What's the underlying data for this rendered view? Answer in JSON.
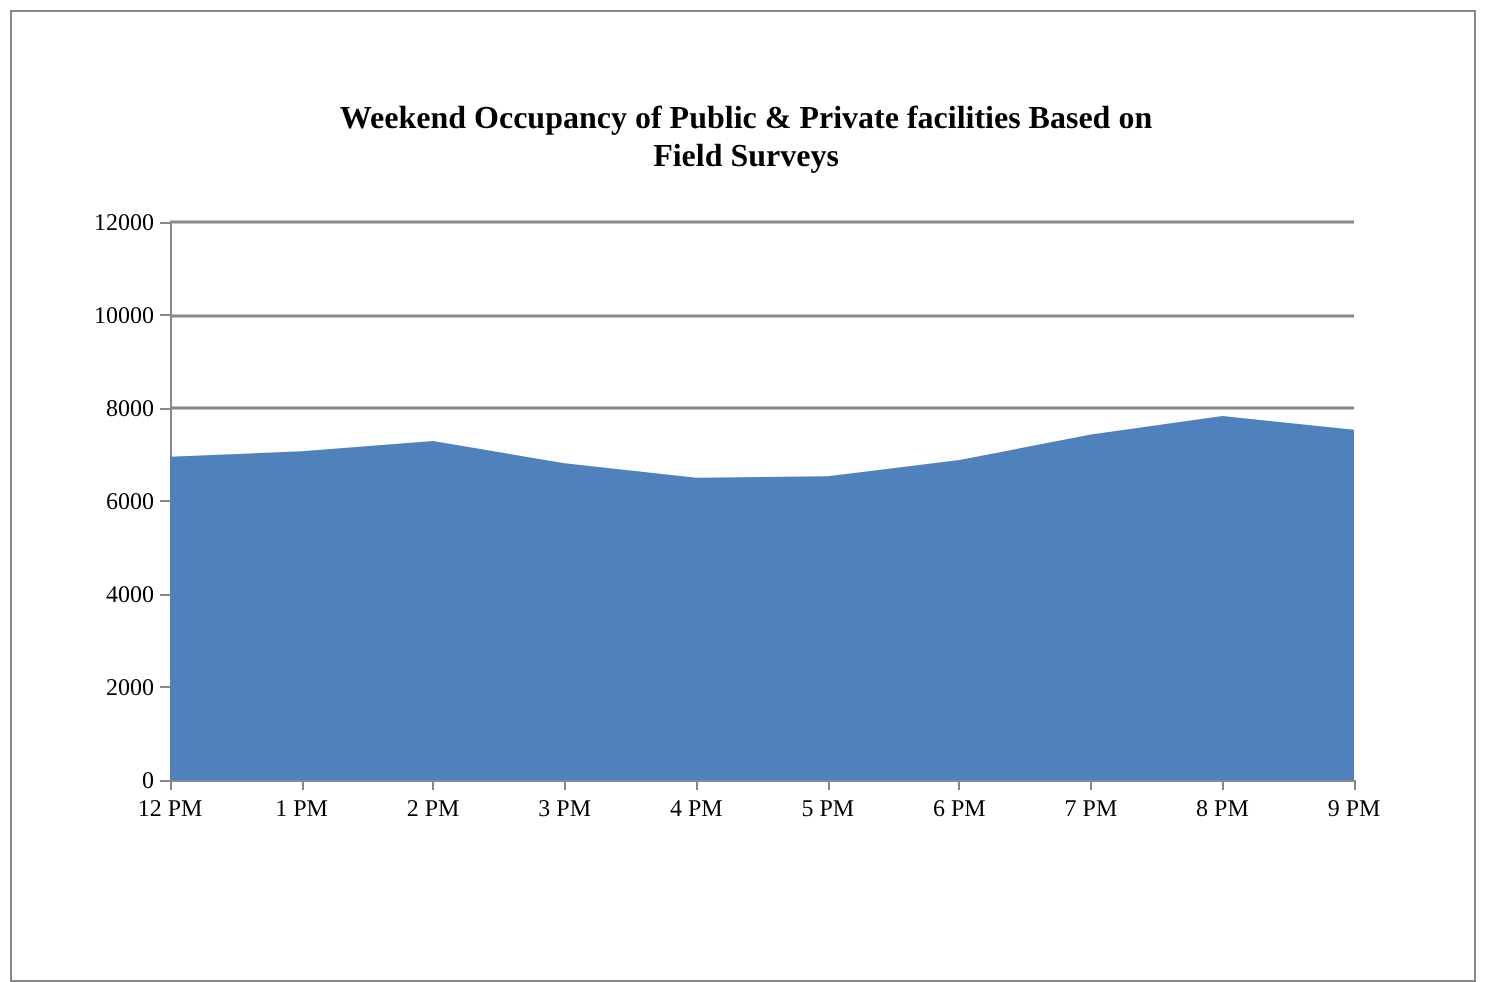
{
  "chart_data": {
    "type": "area",
    "title": "Weekend Occupancy of Public & Private facilities Based on\nField Surveys",
    "categories": [
      "12 PM",
      "1 PM",
      "2 PM",
      "3 PM",
      "4 PM",
      "5 PM",
      "6 PM",
      "7 PM",
      "8 PM",
      "9 PM"
    ],
    "values": [
      6950,
      7070,
      7290,
      6810,
      6500,
      6530,
      6880,
      7430,
      7830,
      7530
    ],
    "color": "#4f81bd",
    "ylim": [
      0,
      12000
    ],
    "yticks": [
      0,
      2000,
      4000,
      6000,
      8000,
      10000,
      12000
    ],
    "grid": "y"
  }
}
